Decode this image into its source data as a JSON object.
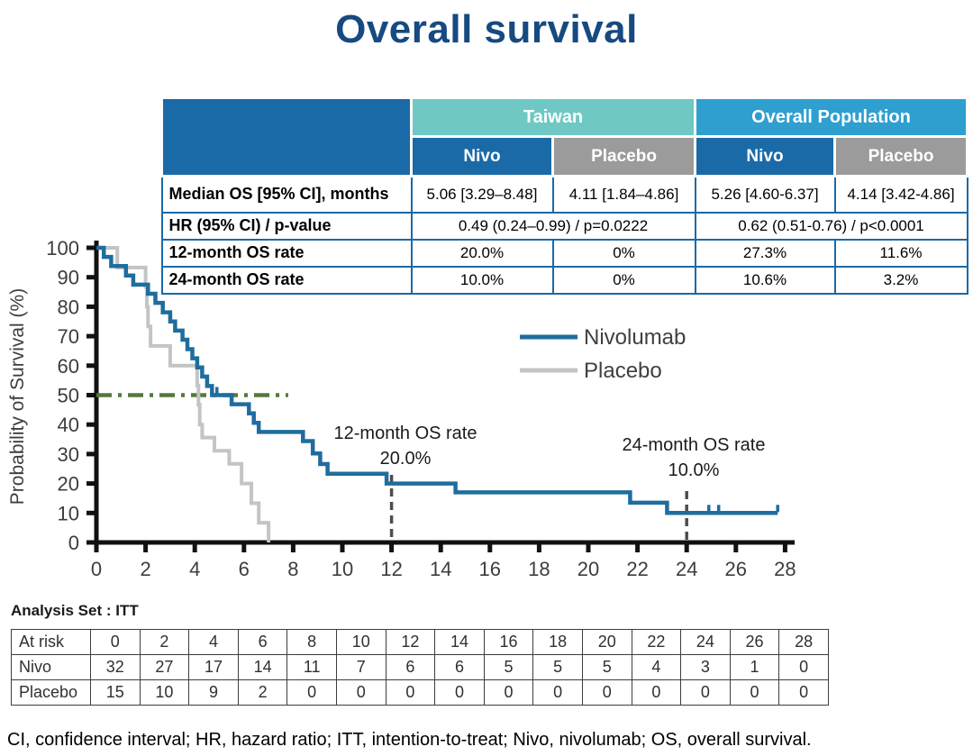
{
  "title": "Overall survival",
  "colors": {
    "title": "#164a80",
    "table_dark_blue": "#1a6aa8",
    "table_teal": "#6fc8c3",
    "table_blue": "#2f9fd0",
    "table_gray": "#9b9b9b",
    "nivolumab_line": "#1f6d9e",
    "placebo_line": "#c2c4c6",
    "median_reference_green": "#55783c",
    "dashed_reference": "#4d4d4d",
    "axis": "#111111",
    "tick_text": "#3d3d3d"
  },
  "summary_table": {
    "group_headers": [
      {
        "label": "Taiwan",
        "span": 2
      },
      {
        "label": "Overall Population",
        "span": 2
      }
    ],
    "sub_headers": [
      "Nivo",
      "Placebo",
      "Nivo",
      "Placebo"
    ],
    "rows": [
      {
        "label": "Median OS [95% CI], months",
        "cells": [
          "5.06 [3.29–8.48]",
          "4.11 [1.84–4.86]",
          "5.26 [4.60-6.37]",
          "4.14 [3.42-4.86]"
        ]
      },
      {
        "label": "HR (95% CI) / p-value",
        "cells": [
          "0.49 (0.24–0.99) / p=0.0222",
          "0.62 (0.51-0.76) / p<0.0001"
        ],
        "spans": [
          2,
          2
        ]
      },
      {
        "label": "12-month OS rate",
        "cells": [
          "20.0%",
          "0%",
          "27.3%",
          "11.6%"
        ]
      },
      {
        "label": "24-month OS rate",
        "cells": [
          "10.0%",
          "0%",
          "10.6%",
          "3.2%"
        ]
      }
    ]
  },
  "chart_data": {
    "type": "line",
    "subtype": "kaplan-meier-step",
    "title": "",
    "xlabel": "",
    "ylabel": "Probability of Survival (%)",
    "xlim": [
      0,
      28
    ],
    "ylim": [
      0,
      100
    ],
    "xticks": [
      0,
      2,
      4,
      6,
      8,
      10,
      12,
      14,
      16,
      18,
      20,
      22,
      24,
      26,
      28
    ],
    "yticks": [
      0,
      10,
      20,
      30,
      40,
      50,
      60,
      70,
      80,
      90,
      100
    ],
    "grid": false,
    "legend_position": "middle-right",
    "series": [
      {
        "name": "Nivolumab",
        "steps": [
          [
            0,
            100
          ],
          [
            0.3,
            100
          ],
          [
            0.3,
            96.9
          ],
          [
            0.6,
            96.9
          ],
          [
            0.6,
            93.8
          ],
          [
            1.2,
            93.8
          ],
          [
            1.2,
            90.6
          ],
          [
            1.5,
            90.6
          ],
          [
            1.5,
            87.5
          ],
          [
            2.1,
            87.5
          ],
          [
            2.1,
            84.4
          ],
          [
            2.4,
            84.4
          ],
          [
            2.4,
            81.3
          ],
          [
            2.7,
            81.3
          ],
          [
            2.7,
            78.1
          ],
          [
            3.0,
            78.1
          ],
          [
            3.0,
            75
          ],
          [
            3.2,
            75
          ],
          [
            3.2,
            71.9
          ],
          [
            3.5,
            71.9
          ],
          [
            3.5,
            68.8
          ],
          [
            3.7,
            68.8
          ],
          [
            3.7,
            65.6
          ],
          [
            3.9,
            65.6
          ],
          [
            3.9,
            62.5
          ],
          [
            4.1,
            62.5
          ],
          [
            4.1,
            59.4
          ],
          [
            4.3,
            59.4
          ],
          [
            4.3,
            56.3
          ],
          [
            4.5,
            56.3
          ],
          [
            4.5,
            53.1
          ],
          [
            4.7,
            53.1
          ],
          [
            4.7,
            50
          ],
          [
            5.5,
            50
          ],
          [
            5.5,
            46.9
          ],
          [
            6.2,
            46.9
          ],
          [
            6.2,
            43.8
          ],
          [
            6.4,
            43.8
          ],
          [
            6.4,
            40.6
          ],
          [
            6.6,
            40.6
          ],
          [
            6.6,
            37.5
          ],
          [
            8.4,
            37.5
          ],
          [
            8.4,
            34.4
          ],
          [
            8.8,
            34.4
          ],
          [
            8.8,
            30.2
          ],
          [
            9.1,
            30.2
          ],
          [
            9.1,
            26.6
          ],
          [
            9.4,
            26.6
          ],
          [
            9.4,
            23.3
          ],
          [
            11.8,
            23.3
          ],
          [
            11.8,
            20
          ],
          [
            14.6,
            20
          ],
          [
            14.6,
            17
          ],
          [
            21.7,
            17
          ],
          [
            21.7,
            13.5
          ],
          [
            23.2,
            13.5
          ],
          [
            23.2,
            10
          ],
          [
            27.7,
            10
          ]
        ],
        "censor_ticks": [
          [
            4.9,
            50
          ],
          [
            24.9,
            10
          ],
          [
            25.3,
            10
          ],
          [
            27.7,
            10
          ]
        ]
      },
      {
        "name": "Placebo",
        "steps": [
          [
            0,
            100
          ],
          [
            0.85,
            100
          ],
          [
            0.85,
            93.3
          ],
          [
            2.0,
            93.3
          ],
          [
            2.0,
            86.7
          ],
          [
            2.05,
            86.7
          ],
          [
            2.05,
            80
          ],
          [
            2.1,
            80
          ],
          [
            2.1,
            73.3
          ],
          [
            2.2,
            73.3
          ],
          [
            2.2,
            66.7
          ],
          [
            3.0,
            66.7
          ],
          [
            3.0,
            60
          ],
          [
            4.1,
            60
          ],
          [
            4.1,
            53.3
          ],
          [
            4.15,
            53.3
          ],
          [
            4.15,
            46.7
          ],
          [
            4.2,
            46.7
          ],
          [
            4.2,
            40
          ],
          [
            4.3,
            40
          ],
          [
            4.3,
            35.6
          ],
          [
            4.8,
            35.6
          ],
          [
            4.8,
            31.1
          ],
          [
            5.4,
            31.1
          ],
          [
            5.4,
            26.7
          ],
          [
            5.9,
            26.7
          ],
          [
            5.9,
            20
          ],
          [
            6.3,
            20
          ],
          [
            6.3,
            13.3
          ],
          [
            6.6,
            13.3
          ],
          [
            6.6,
            6.7
          ],
          [
            7.0,
            6.7
          ],
          [
            7.0,
            0
          ]
        ],
        "censor_ticks": []
      }
    ],
    "reference_lines": [
      {
        "kind": "horizontal-dashdot",
        "y": 50,
        "x_start": 0,
        "x_end": 7.8
      },
      {
        "kind": "vertical-dashed",
        "x": 12
      },
      {
        "kind": "vertical-dashed",
        "x": 24
      }
    ],
    "annotations": [
      {
        "label": "12-month OS rate",
        "value": "20.0%",
        "month": 12
      },
      {
        "label": "24-month OS rate",
        "value": "10.0%",
        "month": 24
      }
    ]
  },
  "analysis_set": "Analysis Set : ITT",
  "at_risk_table": {
    "header": [
      "At risk",
      "0",
      "2",
      "4",
      "6",
      "8",
      "10",
      "12",
      "14",
      "16",
      "18",
      "20",
      "22",
      "24",
      "26",
      "28"
    ],
    "rows": [
      {
        "label": "Nivo",
        "values": [
          "32",
          "27",
          "17",
          "14",
          "11",
          "7",
          "6",
          "6",
          "5",
          "5",
          "5",
          "4",
          "3",
          "1",
          "0"
        ]
      },
      {
        "label": "Placebo",
        "values": [
          "15",
          "10",
          "9",
          "2",
          "0",
          "0",
          "0",
          "0",
          "0",
          "0",
          "0",
          "0",
          "0",
          "0",
          "0"
        ]
      }
    ]
  },
  "footnote": "CI, confidence interval; HR, hazard ratio; ITT, intention-to-treat; Nivo, nivolumab; OS, overall survival."
}
